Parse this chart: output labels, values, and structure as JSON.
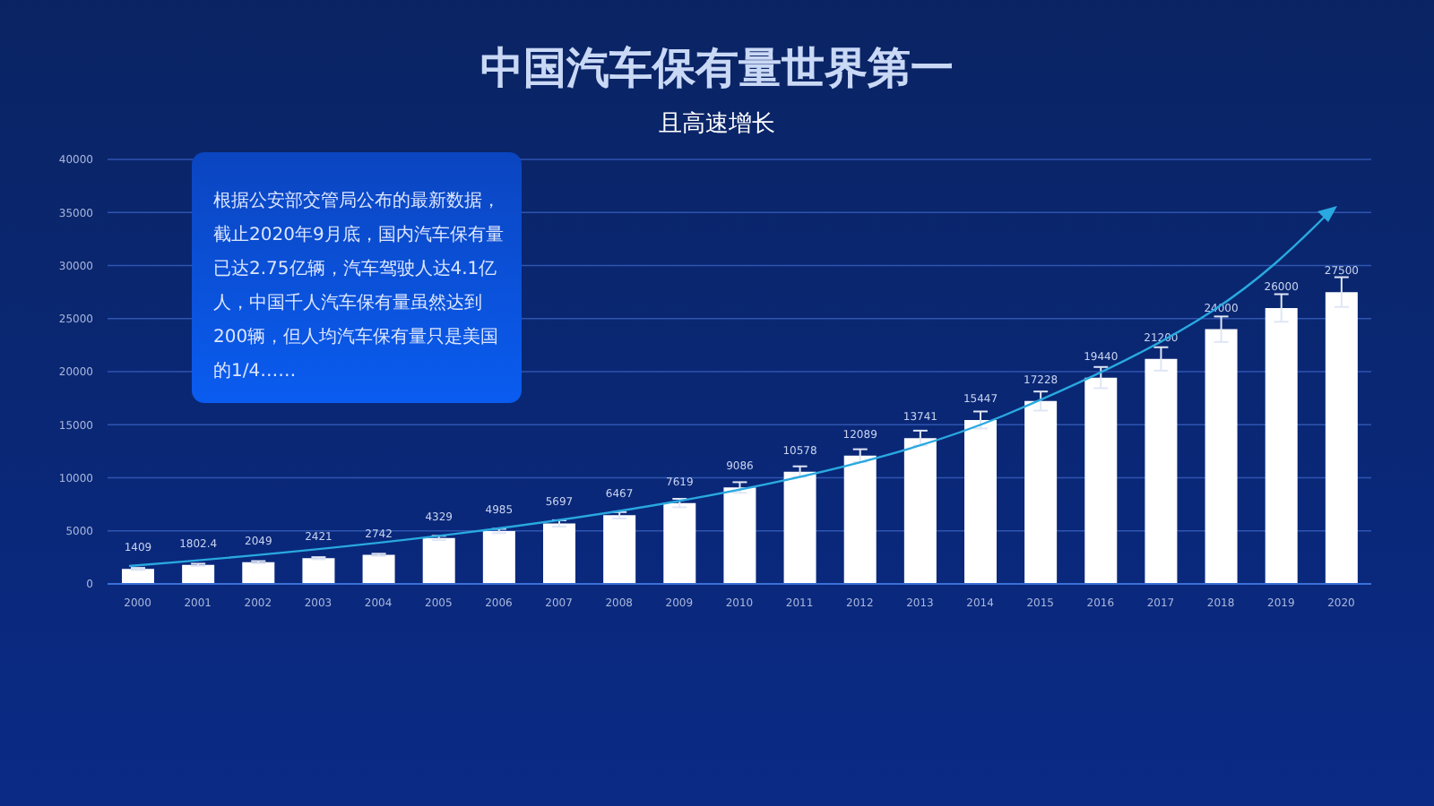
{
  "chart_data": {
    "type": "bar",
    "title": "中国汽车保有量世界第一",
    "subtitle": "且高速增长",
    "annotations": [
      "根据公安部交管局公布的最新数据，截止2020年9月底，国内汽车保有量已达2.75亿辆，汽车驾驶人达4.1亿人，中国千人汽车保有量虽然达到200辆，但人均汽车保有量只是美国的1/4……"
    ],
    "categories": [
      "2000",
      "2001",
      "2002",
      "2003",
      "2004",
      "2005",
      "2006",
      "2007",
      "2008",
      "2009",
      "2010",
      "2011",
      "2012",
      "2013",
      "2014",
      "2015",
      "2016",
      "2017",
      "2018",
      "2019",
      "2020"
    ],
    "series": [
      {
        "color": "#ffffff",
        "values": [
          1409,
          1802.4,
          2049,
          2421,
          2742,
          4329,
          4985,
          5697,
          6467,
          7619,
          9086,
          10578,
          12089,
          13741,
          15447,
          17228,
          19440,
          21200,
          24000,
          26000,
          27500
        ],
        "errors": [
          100,
          100,
          100,
          100,
          100,
          200,
          200,
          300,
          300,
          400,
          500,
          500,
          600,
          700,
          800,
          900,
          1000,
          1100,
          1200,
          1300,
          1400
        ]
      }
    ],
    "ylim": [
      0,
      40000
    ],
    "yticks": [
      0,
      5000,
      10000,
      15000,
      20000,
      25000,
      30000,
      35000,
      40000
    ],
    "grid": "y",
    "data_labels": true
  }
}
